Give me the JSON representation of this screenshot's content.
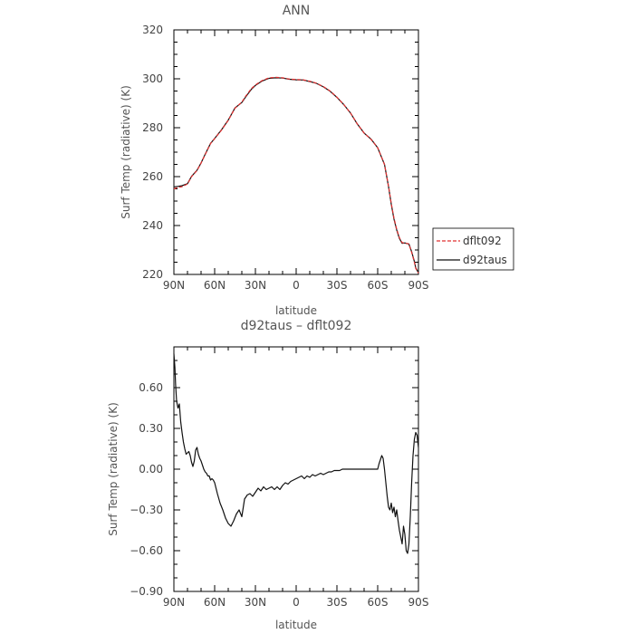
{
  "chart_data": [
    {
      "type": "line",
      "title": "ANN",
      "xlabel": "latitude",
      "ylabel": "Surf Temp (radiative) (K)",
      "xlim": [
        90,
        -90
      ],
      "ylim": [
        220,
        320
      ],
      "x_tick_labels": [
        "90N",
        "60N",
        "30N",
        "0",
        "30S",
        "60S",
        "90S"
      ],
      "y_tick_labels": [
        "220",
        "240",
        "260",
        "280",
        "300",
        "320"
      ],
      "legend": "right",
      "series": [
        {
          "name": "dflt092",
          "style": "dashed",
          "color": "#e03030",
          "x": [
            90,
            87,
            84,
            80,
            77,
            73,
            70,
            67,
            63,
            60,
            55,
            50,
            45,
            40,
            37,
            33,
            30,
            25,
            20,
            15,
            10,
            5,
            0,
            -5,
            -10,
            -15,
            -20,
            -25,
            -30,
            -35,
            -40,
            -45,
            -50,
            -55,
            -60,
            -65,
            -68,
            -70,
            -72,
            -74,
            -76,
            -78,
            -80,
            -83,
            -85,
            -87,
            -88,
            -90
          ],
          "y": [
            255,
            255.6,
            255.9,
            257,
            260,
            262.5,
            265.5,
            269,
            273.5,
            275.5,
            279,
            283,
            288,
            290.5,
            293,
            296,
            297.5,
            299.3,
            300.4,
            300.6,
            300.4,
            299.9,
            299.7,
            299.6,
            299,
            298.2,
            296.8,
            295,
            292.5,
            289.5,
            286,
            281.5,
            277.8,
            275.3,
            271.8,
            265,
            256,
            249,
            243,
            238.5,
            235,
            233,
            232.8,
            232.5,
            229,
            225,
            222.5,
            220.5
          ]
        },
        {
          "name": "d92taus",
          "style": "solid",
          "color": "#111111",
          "x": [
            90,
            87,
            84,
            80,
            77,
            73,
            70,
            67,
            63,
            60,
            55,
            50,
            45,
            40,
            37,
            33,
            30,
            25,
            20,
            15,
            10,
            5,
            0,
            -5,
            -10,
            -15,
            -20,
            -25,
            -30,
            -35,
            -40,
            -45,
            -50,
            -55,
            -60,
            -65,
            -68,
            -70,
            -72,
            -74,
            -76,
            -78,
            -80,
            -83,
            -85,
            -87,
            -88,
            -90
          ],
          "y": [
            255.8,
            256,
            256.3,
            257.1,
            260.1,
            262.6,
            265.6,
            269.1,
            273.6,
            275.6,
            279.1,
            283.1,
            288.1,
            290.3,
            292.7,
            295.7,
            297.3,
            299.1,
            300.2,
            300.4,
            300.3,
            299.8,
            299.6,
            299.5,
            298.9,
            298.1,
            296.7,
            294.9,
            292.4,
            289.5,
            286,
            281.5,
            277.8,
            275.4,
            271.8,
            265,
            255.9,
            248.7,
            242.6,
            238.2,
            234.7,
            232.7,
            232.9,
            232.4,
            229.3,
            225.3,
            222.7,
            220.7
          ]
        }
      ]
    },
    {
      "type": "line",
      "title": "d92taus – dflt092",
      "xlabel": "latitude",
      "ylabel": "Surf Temp (radiative) (K)",
      "xlim": [
        90,
        -90
      ],
      "ylim": [
        -0.9,
        0.9
      ],
      "x_tick_labels": [
        "90N",
        "60N",
        "30N",
        "0",
        "30S",
        "60S",
        "90S"
      ],
      "y_tick_labels": [
        "−0.90",
        "−0.60",
        "−0.30",
        "0.00",
        "0.30",
        "0.60"
      ],
      "series": [
        {
          "color": "#111111",
          "x": [
            90,
            89.3,
            88.7,
            88,
            87,
            86,
            85,
            84,
            83,
            82,
            81,
            80,
            79,
            78,
            77,
            76,
            75,
            74,
            73,
            72,
            71,
            70,
            69,
            68,
            67,
            66,
            65,
            64,
            63,
            62,
            61,
            60,
            58,
            56,
            54,
            52,
            50,
            48,
            46,
            44,
            42,
            40,
            38,
            36,
            34,
            32,
            30,
            28,
            26,
            24,
            22,
            20,
            18,
            16,
            14,
            12,
            10,
            8,
            6,
            4,
            2,
            0,
            -2,
            -4,
            -6,
            -8,
            -10,
            -12,
            -14,
            -16,
            -18,
            -20,
            -22,
            -24,
            -26,
            -28,
            -30,
            -32,
            -34,
            -36,
            -38,
            -40,
            -42,
            -44,
            -46,
            -48,
            -50,
            -52,
            -54,
            -56,
            -58,
            -60,
            -61,
            -62,
            -63,
            -64,
            -65,
            -66,
            -67,
            -68,
            -69,
            -70,
            -71,
            -72,
            -73,
            -74,
            -75,
            -76,
            -77,
            -78,
            -79,
            -80,
            -81,
            -82,
            -83,
            -84,
            -85,
            -86,
            -87,
            -88,
            -89,
            -89.5,
            -90
          ],
          "y": [
            0.85,
            0.75,
            0.62,
            0.5,
            0.45,
            0.48,
            0.35,
            0.27,
            0.2,
            0.15,
            0.11,
            0.12,
            0.13,
            0.1,
            0.05,
            0.02,
            0.06,
            0.14,
            0.16,
            0.11,
            0.08,
            0.06,
            0.03,
            0.0,
            -0.02,
            -0.03,
            -0.05,
            -0.05,
            -0.08,
            -0.07,
            -0.08,
            -0.1,
            -0.18,
            -0.25,
            -0.3,
            -0.36,
            -0.4,
            -0.42,
            -0.38,
            -0.33,
            -0.3,
            -0.35,
            -0.22,
            -0.19,
            -0.18,
            -0.2,
            -0.17,
            -0.14,
            -0.16,
            -0.13,
            -0.15,
            -0.14,
            -0.13,
            -0.15,
            -0.13,
            -0.15,
            -0.12,
            -0.1,
            -0.11,
            -0.09,
            -0.08,
            -0.07,
            -0.06,
            -0.05,
            -0.07,
            -0.05,
            -0.06,
            -0.04,
            -0.05,
            -0.04,
            -0.03,
            -0.04,
            -0.03,
            -0.02,
            -0.02,
            -0.01,
            -0.01,
            -0.01,
            0.0,
            0.0,
            0.0,
            0.0,
            0.0,
            0.0,
            0.0,
            0.0,
            0.0,
            0.0,
            0.0,
            0.0,
            0.0,
            0.0,
            0.04,
            0.07,
            0.1,
            0.08,
            0.0,
            -0.1,
            -0.2,
            -0.28,
            -0.3,
            -0.25,
            -0.32,
            -0.28,
            -0.35,
            -0.3,
            -0.38,
            -0.45,
            -0.5,
            -0.55,
            -0.42,
            -0.48,
            -0.6,
            -0.62,
            -0.55,
            -0.35,
            -0.1,
            0.1,
            0.22,
            0.27,
            0.25,
            0.2,
            0.16
          ]
        }
      ]
    }
  ]
}
